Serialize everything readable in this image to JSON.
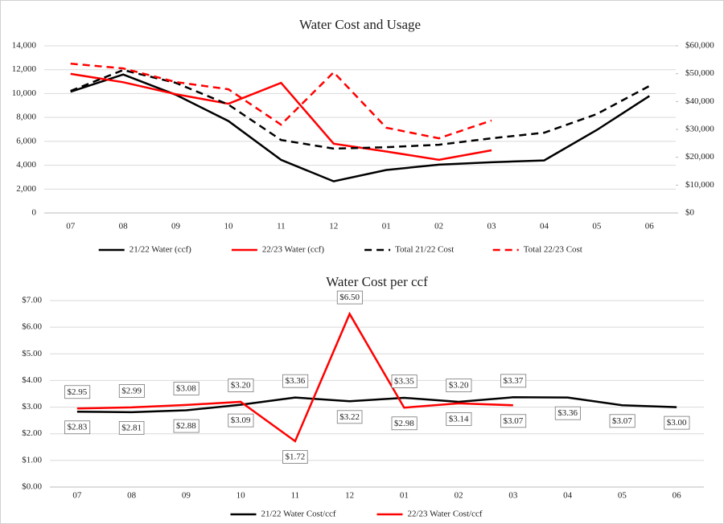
{
  "chart_data": [
    {
      "type": "line",
      "title": "Water Cost and Usage",
      "categories": [
        "07",
        "08",
        "09",
        "10",
        "11",
        "12",
        "01",
        "02",
        "03",
        "04",
        "05",
        "06"
      ],
      "ylim": [
        0,
        14000
      ],
      "yticks": [
        0,
        {
          "value": 2000,
          "label": "2,000"
        },
        {
          "value": 4000,
          "label": "4,000"
        },
        {
          "value": 6000,
          "label": "6,000"
        },
        {
          "value": 8000,
          "label": "8,000"
        },
        {
          "value": 10000,
          "label": "10,000"
        },
        {
          "value": 12000,
          "label": "12,000"
        },
        {
          "value": 14000,
          "label": "14,000"
        }
      ],
      "y2lim": [
        0,
        60000
      ],
      "y2ticks": [
        {
          "value": 0,
          "label": "$0"
        },
        {
          "value": 10000,
          "label": "$10,000"
        },
        {
          "value": 20000,
          "label": "$20,000"
        },
        {
          "value": 30000,
          "label": "$30,000"
        },
        {
          "value": 40000,
          "label": "$40,000"
        },
        {
          "value": 50000,
          "label": "$50,000"
        },
        {
          "value": 60000,
          "label": "$60,000"
        }
      ],
      "grid": true,
      "legend": "bottom",
      "series": [
        {
          "name": "21/22 Water (ccf)",
          "color": "#000000",
          "style": "solid",
          "values": [
            10150,
            11600,
            9900,
            7700,
            4450,
            2650,
            3600,
            4050,
            4250,
            4400,
            6950,
            9800
          ]
        },
        {
          "name": "22/23 Water (ccf)",
          "color": "#ff0000",
          "style": "solid",
          "values": [
            11650,
            10950,
            9950,
            9150,
            10900,
            5800,
            5150,
            4450,
            5250,
            null,
            null,
            null
          ]
        },
        {
          "name": "Total 21/22 Cost",
          "color": "#000000",
          "style": "dashed",
          "axis": "y2",
          "values": [
            43800,
            51300,
            46700,
            38900,
            26200,
            23100,
            23600,
            24500,
            26800,
            28800,
            35500,
            45600
          ]
        },
        {
          "name": "Total 22/23 Cost",
          "color": "#ff0000",
          "style": "dashed",
          "axis": "y2",
          "values": [
            53600,
            51900,
            47000,
            44400,
            31700,
            50500,
            30600,
            26800,
            33200,
            null,
            null,
            null
          ]
        }
      ]
    },
    {
      "type": "line",
      "title": "Water Cost per ccf",
      "categories": [
        "07",
        "08",
        "09",
        "10",
        "11",
        "12",
        "01",
        "02",
        "03",
        "04",
        "05",
        "06"
      ],
      "ylim": [
        0,
        7
      ],
      "yticks": [
        {
          "value": 0,
          "label": "$0.00"
        },
        {
          "value": 1,
          "label": "$1.00"
        },
        {
          "value": 2,
          "label": "$2.00"
        },
        {
          "value": 3,
          "label": "$3.00"
        },
        {
          "value": 4,
          "label": "$4.00"
        },
        {
          "value": 5,
          "label": "$5.00"
        },
        {
          "value": 6,
          "label": "$6.00"
        },
        {
          "value": 7,
          "label": "$7.00"
        }
      ],
      "grid": true,
      "legend": "bottom",
      "series": [
        {
          "name": "21/22 Water Cost/ccf",
          "color": "#000000",
          "style": "solid",
          "values": [
            2.83,
            2.81,
            2.88,
            3.09,
            3.36,
            3.22,
            3.35,
            3.2,
            3.37,
            3.36,
            3.07,
            3.0
          ],
          "value_labels": [
            "$2.83",
            "$2.81",
            "$2.88",
            "$3.09",
            "$3.36",
            "$3.22",
            "$3.35",
            "$3.20",
            "$3.37",
            "$3.36",
            "$3.07",
            "$3.00"
          ]
        },
        {
          "name": "22/23 Water Cost/ccf",
          "color": "#ff0000",
          "style": "solid",
          "values": [
            2.95,
            2.99,
            3.08,
            3.2,
            1.72,
            6.5,
            2.98,
            3.14,
            3.07,
            null,
            null,
            null
          ],
          "value_labels": [
            "$2.95",
            "$2.99",
            "$3.08",
            "$3.20",
            "$1.72",
            "$6.50",
            "$2.98",
            "$3.14",
            "$3.07",
            null,
            null,
            null
          ]
        }
      ]
    }
  ]
}
